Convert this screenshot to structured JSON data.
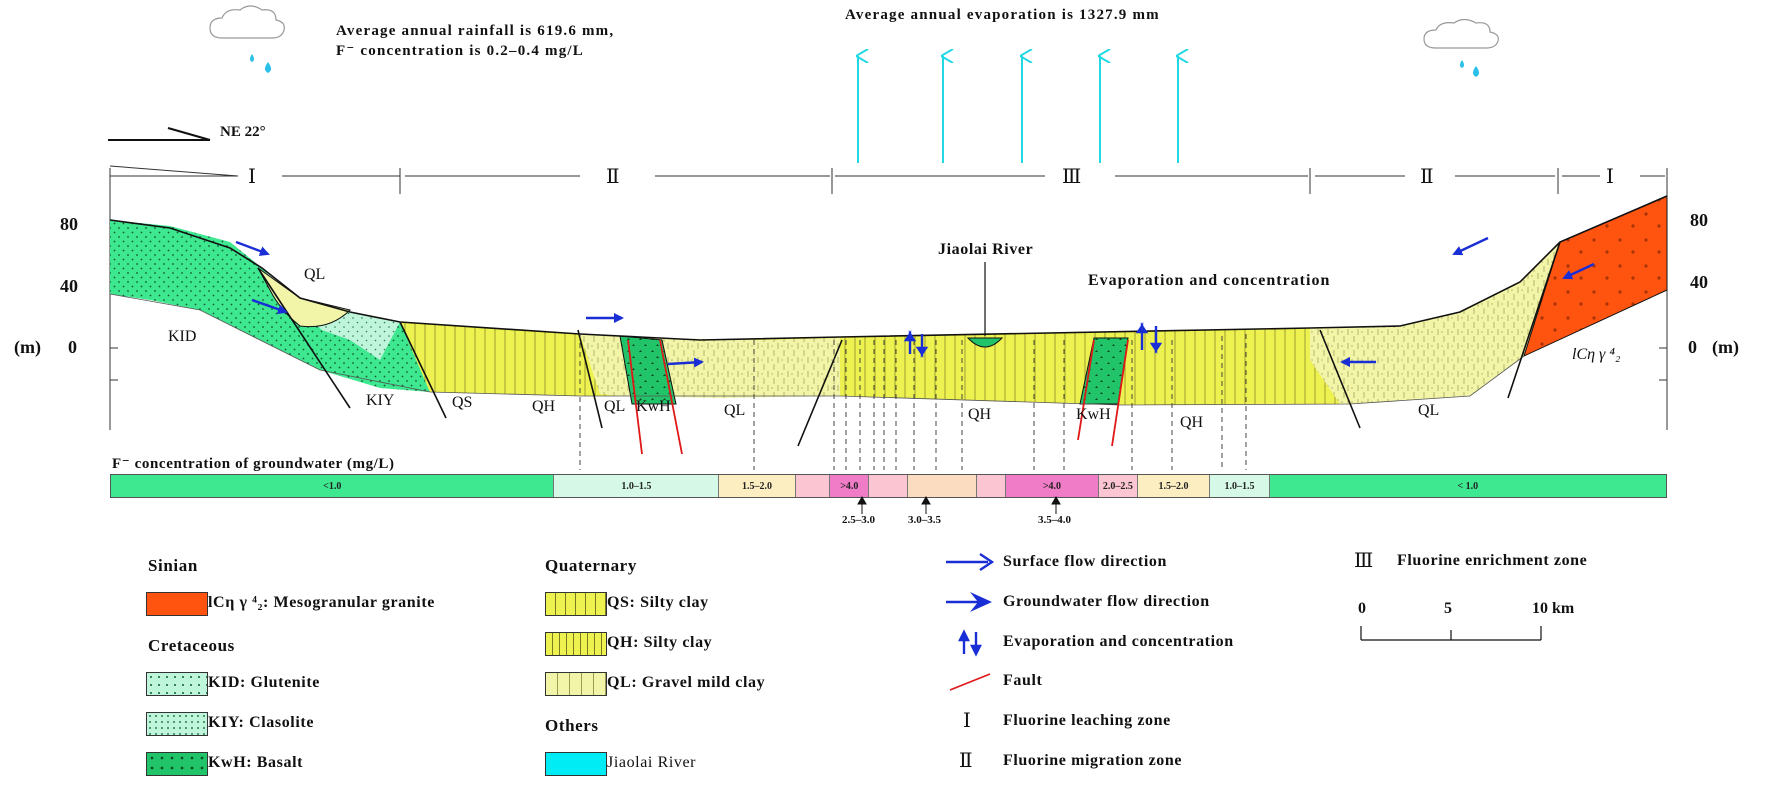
{
  "title_block": {
    "rainfall_line1": "Average annual rainfall is 619.6 mm,",
    "rainfall_line2": "F⁻ concentration is 0.2–0.4 mg/L",
    "evaporation": "Average annual evaporation is 1327.9 mm",
    "orientation": "NE 22°"
  },
  "zones": [
    "Ⅰ",
    "Ⅱ",
    "Ⅲ",
    "Ⅱ",
    "Ⅰ"
  ],
  "axis": {
    "left_ticks": [
      "80",
      "40",
      "0"
    ],
    "right_ticks": [
      "80",
      "40",
      "0"
    ],
    "left_unit": "(m)",
    "right_unit": "(m)"
  },
  "section_labels": {
    "jiaolai_river": "Jiaolai River",
    "evaporation_concentration": "Evaporation and concentration",
    "kid": "KID",
    "kiy": "KIY",
    "ql_left": "QL",
    "qs": "QS",
    "qh_left": "QH",
    "ql_mid_a": "QL",
    "kwh_left": "KwH",
    "ql_mid_b": "QL",
    "qh_center": "QH",
    "kwh_right": "KwH",
    "qh_right": "QH",
    "ql_right": "QL",
    "granite": "lCη γ ⁴₂"
  },
  "concentration_bar": {
    "label": "F⁻ concentration of groundwater (mg/L)",
    "segments": [
      {
        "text": "<1.0",
        "color": "#3ee890"
      },
      {
        "text": "1.0–1.5",
        "color": "#d6f8e6"
      },
      {
        "text": "1.5–2.0",
        "color": "#fdeec2"
      },
      {
        "text": "",
        "color": "#fbc6d2"
      },
      {
        "text": ">4.0",
        "color": "#f07cc8"
      },
      {
        "text": "",
        "color": "#fbc6d2"
      },
      {
        "text": "",
        "color": "#fcdcc0"
      },
      {
        "text": "",
        "color": "#fbc6d2"
      },
      {
        "text": ">4.0",
        "color": "#f07cc8"
      },
      {
        "text": "2.0–2.5",
        "color": "#fbc6d2"
      },
      {
        "text": "1.5–2.0",
        "color": "#fdeec2"
      },
      {
        "text": "1.0–1.5",
        "color": "#d6f8e6"
      },
      {
        "text": "< 1.0",
        "color": "#3ee890"
      }
    ],
    "callouts": [
      "2.5–3.0",
      "3.0–3.5",
      "3.5–4.0"
    ]
  },
  "legend": {
    "sinian": {
      "heading": "Sinian",
      "granite": "lCη γ ⁴₂:  Mesogranular granite"
    },
    "cretaceous": {
      "heading": "Cretaceous",
      "kid": "KID:  Glutenite",
      "kiy": "KIY:  Clasolite",
      "kwh": "KwH:  Basalt"
    },
    "quaternary": {
      "heading": "Quaternary",
      "qs": "QS:  Silty clay",
      "qh": "QH:  Silty clay",
      "ql": "QL:  Gravel mild clay"
    },
    "others": {
      "heading": "Others",
      "river": "Jiaolai River"
    },
    "symbols": {
      "surface_flow": "Surface flow direction",
      "groundwater_flow": "Groundwater flow direction",
      "evap_conc": "Evaporation and concentration",
      "fault": "Fault",
      "leaching": "Fluorine leaching zone",
      "migration": "Fluorine migration zone",
      "enrichment": "Fluorine enrichment zone",
      "leaching_symbol": "Ⅰ",
      "migration_symbol": "Ⅱ",
      "enrichment_symbol": "Ⅲ"
    },
    "scale": {
      "ticks": [
        "0",
        "5",
        "10 km"
      ]
    }
  },
  "colors": {
    "glutenite": "#3ee890",
    "clasolite": "#bff5da",
    "basalt": "#22c46a",
    "silty_clay": "#eef250",
    "gravel_clay": "#f2f5a8",
    "granite": "#ff5410",
    "river": "#00ecf5",
    "evaporation_arrow": "#22d8e4",
    "flow_arrow": "#1a2ed6",
    "fault": "#e01818"
  }
}
